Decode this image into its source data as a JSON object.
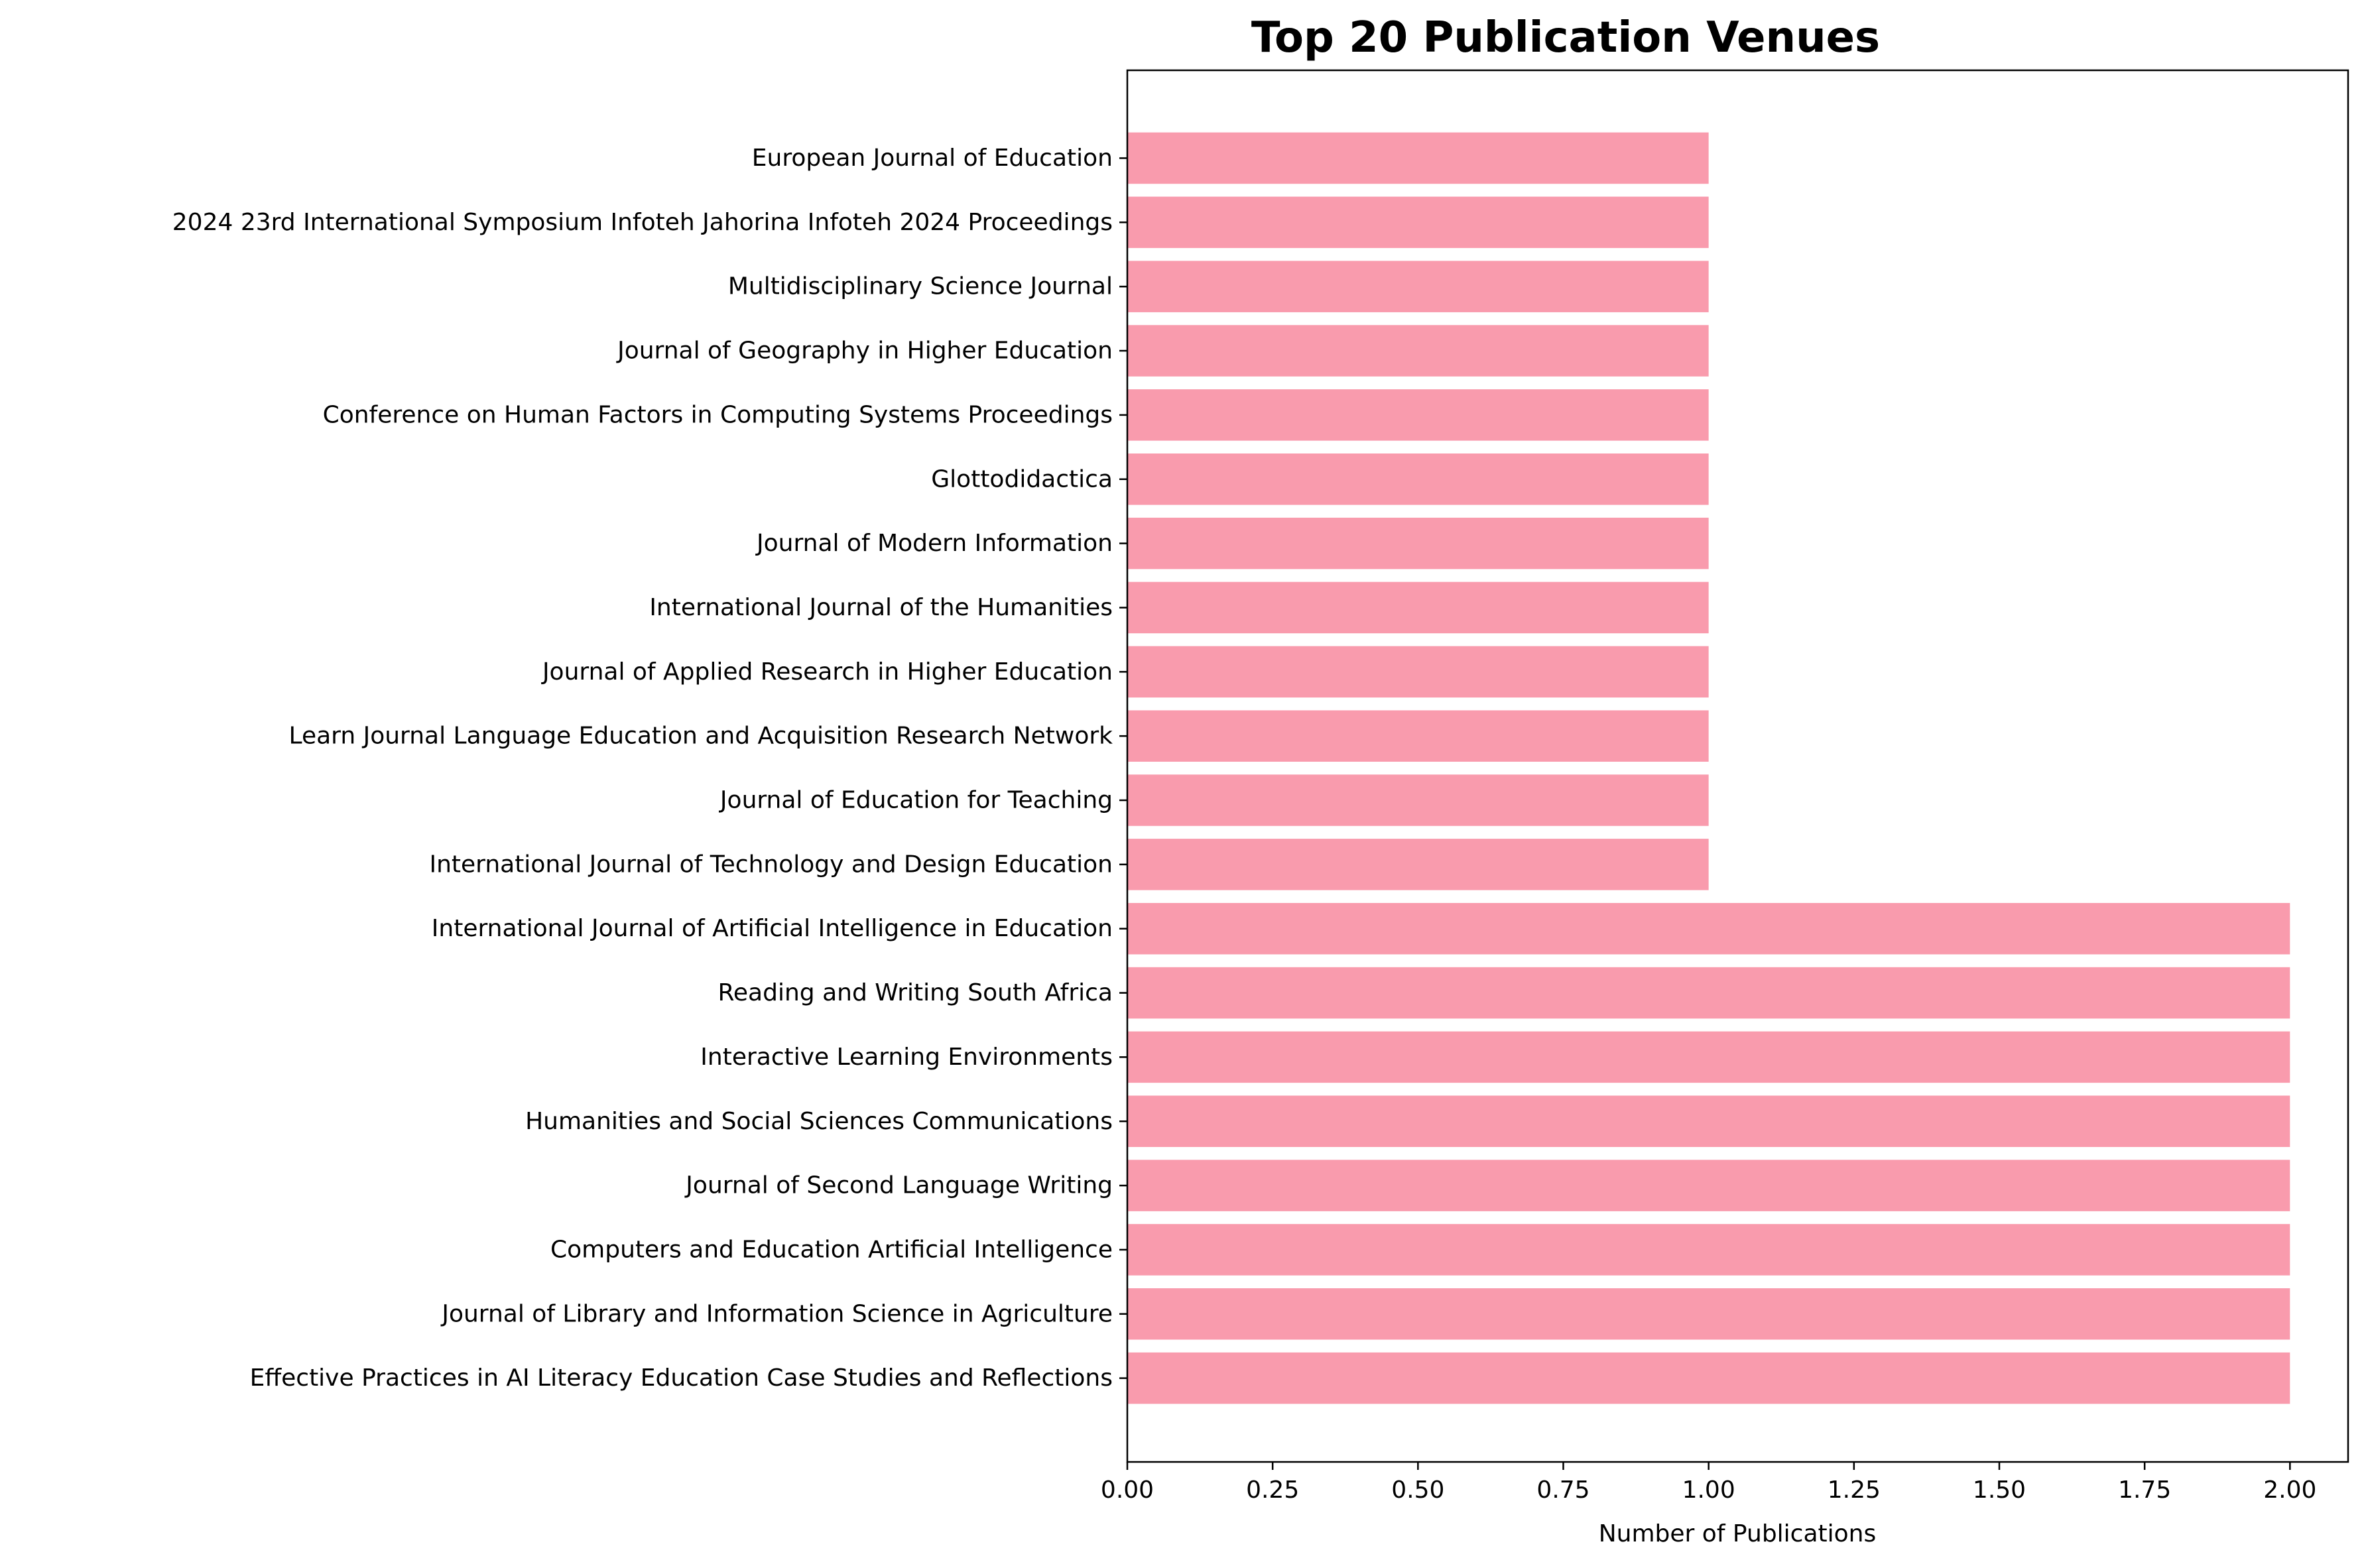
{
  "chart_data": {
    "type": "bar",
    "orientation": "horizontal",
    "title": "Top 20 Publication Venues",
    "xlabel": "Number of Publications",
    "ylabel": "",
    "xlim": [
      0,
      2.1
    ],
    "xticks": [
      "0.00",
      "0.25",
      "0.50",
      "0.75",
      "1.00",
      "1.25",
      "1.50",
      "1.75",
      "2.00"
    ],
    "grid": false,
    "bar_color": "#f99bad",
    "categories": [
      "European Journal of Education",
      "2024 23rd International Symposium Infoteh Jahorina Infoteh 2024 Proceedings",
      "Multidisciplinary Science Journal",
      "Journal of Geography in Higher Education",
      "Conference on Human Factors in Computing Systems Proceedings",
      "Glottodidactica",
      "Journal of Modern Information",
      "International Journal of the Humanities",
      "Journal of Applied Research in Higher Education",
      "Learn Journal Language Education and Acquisition Research Network",
      "Journal of Education for Teaching",
      "International Journal of Technology and Design Education",
      "International Journal of Artificial Intelligence in Education",
      "Reading and Writing South Africa",
      "Interactive Learning Environments",
      "Humanities and Social Sciences Communications",
      "Journal of Second Language Writing",
      "Computers and Education Artificial Intelligence",
      "Journal of Library and Information Science in Agriculture",
      "Effective Practices in AI Literacy Education Case Studies and Reflections"
    ],
    "values": [
      1,
      1,
      1,
      1,
      1,
      1,
      1,
      1,
      1,
      1,
      1,
      1,
      2,
      2,
      2,
      2,
      2,
      2,
      2,
      2
    ]
  }
}
